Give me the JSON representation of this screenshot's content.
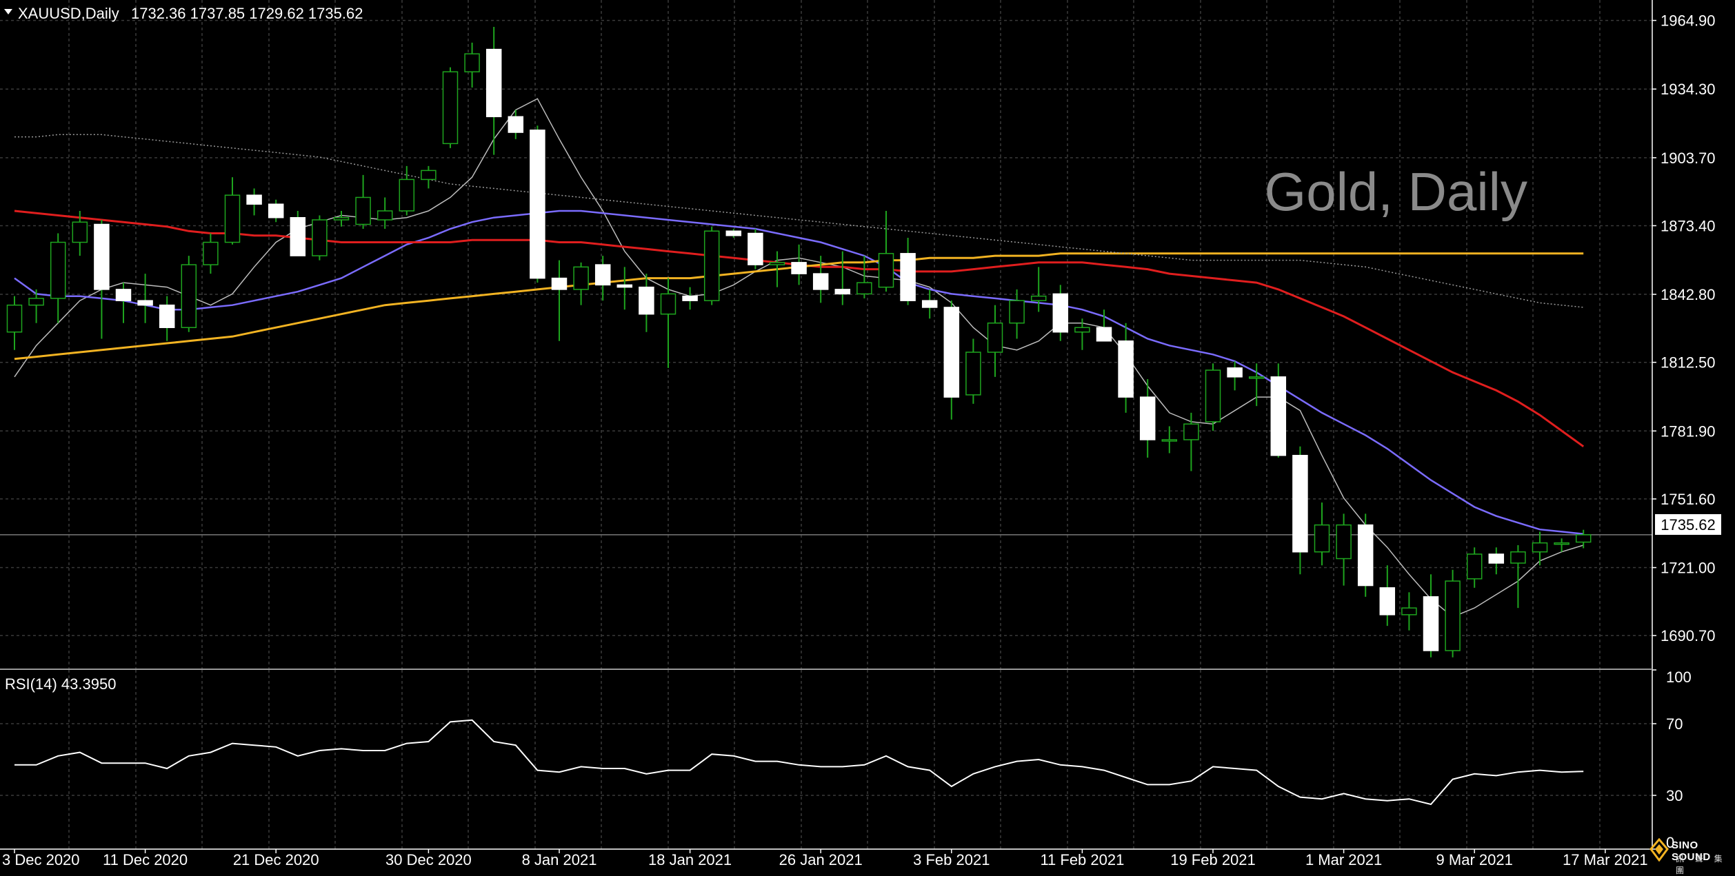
{
  "header": {
    "symbol": "XAUUSD,Daily",
    "ohlc": "1732.36 1737.85 1729.62 1735.62"
  },
  "watermark": "Gold, Daily",
  "current_price_label": "1735.62",
  "rsi_header": "RSI(14) 43.3950",
  "logo": {
    "name": "SINO SOUND",
    "sub": "訊 聲 集 團"
  },
  "colors": {
    "background": "#000000",
    "grid": "#3a3a3a",
    "bull_candle": "#1ea51e",
    "bear_candle": "#ffffff",
    "ma_fast": "#bdbdbd",
    "ma_blue": "#7b6cff",
    "ma_red": "#e01e1e",
    "ma_orange": "#f2b322",
    "ma_slow": "#9c9c9c",
    "rsi": "#ffffff"
  },
  "chart_data": [
    {
      "type": "candlestick",
      "title": "XAUUSD,Daily",
      "x_tick_labels": [
        "3 Dec 2020",
        "11 Dec 2020",
        "21 Dec 2020",
        "30 Dec 2020",
        "8 Jan 2021",
        "18 Jan 2021",
        "26 Jan 2021",
        "3 Feb 2021",
        "11 Feb 2021",
        "19 Feb 2021",
        "1 Mar 2021",
        "9 Mar 2021",
        "17 Mar 2021"
      ],
      "y_ticks": [
        1690.7,
        1721.0,
        1751.6,
        1781.9,
        1812.5,
        1842.8,
        1873.4,
        1903.7,
        1934.3,
        1964.9
      ],
      "y_tick_labels": [
        "1690.70",
        "1721.00",
        "1751.60",
        "1781.90",
        "1812.50",
        "1842.80",
        "1873.40",
        "1903.70",
        "1934.30",
        "1964.90"
      ],
      "ylim": [
        1676,
        1974
      ],
      "current_price": 1735.62,
      "ohlc": [
        [
          1826,
          1842,
          1818,
          1838
        ],
        [
          1838,
          1845,
          1830,
          1841
        ],
        [
          1841,
          1870,
          1830,
          1866
        ],
        [
          1866,
          1880,
          1860,
          1875
        ],
        [
          1874,
          1876,
          1823,
          1845
        ],
        [
          1845,
          1848,
          1830,
          1840
        ],
        [
          1840,
          1852,
          1830,
          1838
        ],
        [
          1838,
          1842,
          1822,
          1828
        ],
        [
          1828,
          1860,
          1826,
          1856
        ],
        [
          1856,
          1870,
          1852,
          1866
        ],
        [
          1866,
          1895,
          1865,
          1887
        ],
        [
          1887,
          1890,
          1878,
          1883
        ],
        [
          1883,
          1885,
          1875,
          1877
        ],
        [
          1877,
          1880,
          1860,
          1860
        ],
        [
          1860,
          1878,
          1858,
          1876
        ],
        [
          1876,
          1880,
          1873,
          1877
        ],
        [
          1874,
          1896,
          1872,
          1886
        ],
        [
          1876,
          1886,
          1872,
          1880
        ],
        [
          1880,
          1900,
          1878,
          1894
        ],
        [
          1894,
          1900,
          1890,
          1898
        ],
        [
          1910,
          1944,
          1908,
          1942
        ],
        [
          1942,
          1955,
          1935,
          1950
        ],
        [
          1952,
          1962,
          1905,
          1922
        ],
        [
          1922,
          1925,
          1912,
          1915
        ],
        [
          1916,
          1918,
          1848,
          1850
        ],
        [
          1850,
          1858,
          1822,
          1845
        ],
        [
          1845,
          1857,
          1838,
          1855
        ],
        [
          1856,
          1860,
          1840,
          1847
        ],
        [
          1847,
          1855,
          1836,
          1846
        ],
        [
          1846,
          1852,
          1826,
          1834
        ],
        [
          1834,
          1850,
          1810,
          1843
        ],
        [
          1842,
          1846,
          1836,
          1840
        ],
        [
          1840,
          1873,
          1838,
          1871
        ],
        [
          1871,
          1872,
          1868,
          1869
        ],
        [
          1870,
          1872,
          1854,
          1856
        ],
        [
          1856,
          1862,
          1846,
          1857
        ],
        [
          1857,
          1865,
          1847,
          1852
        ],
        [
          1852,
          1860,
          1839,
          1845
        ],
        [
          1845,
          1862,
          1838,
          1843
        ],
        [
          1843,
          1860,
          1841,
          1848
        ],
        [
          1846,
          1880,
          1844,
          1861
        ],
        [
          1861,
          1868,
          1838,
          1840
        ],
        [
          1840,
          1845,
          1832,
          1837
        ],
        [
          1837,
          1840,
          1787,
          1797
        ],
        [
          1798,
          1823,
          1794,
          1817
        ],
        [
          1817,
          1838,
          1806,
          1830
        ],
        [
          1830,
          1845,
          1823,
          1840
        ],
        [
          1840,
          1855,
          1835,
          1842
        ],
        [
          1843,
          1847,
          1822,
          1826
        ],
        [
          1826,
          1832,
          1818,
          1828
        ],
        [
          1828,
          1836,
          1823,
          1822
        ],
        [
          1822,
          1830,
          1790,
          1797
        ],
        [
          1797,
          1805,
          1770,
          1778
        ],
        [
          1778,
          1784,
          1772,
          1778
        ],
        [
          1778,
          1790,
          1764,
          1785
        ],
        [
          1786,
          1812,
          1782,
          1809
        ],
        [
          1810,
          1813,
          1800,
          1806
        ],
        [
          1806,
          1812,
          1793,
          1806
        ],
        [
          1806,
          1812,
          1770,
          1771
        ],
        [
          1771,
          1775,
          1718,
          1728
        ],
        [
          1728,
          1750,
          1722,
          1740
        ],
        [
          1725,
          1745,
          1713,
          1740
        ],
        [
          1740,
          1745,
          1708,
          1713
        ],
        [
          1712,
          1722,
          1695,
          1700
        ],
        [
          1700,
          1710,
          1693,
          1703
        ],
        [
          1708,
          1718,
          1681,
          1684
        ],
        [
          1684,
          1720,
          1681,
          1715
        ],
        [
          1716,
          1730,
          1712,
          1727
        ],
        [
          1727,
          1730,
          1718,
          1723
        ],
        [
          1723,
          1731,
          1703,
          1728
        ],
        [
          1728,
          1737,
          1722,
          1732
        ],
        [
          1732,
          1734,
          1728,
          1732
        ],
        [
          1732.36,
          1737.85,
          1729.62,
          1735.62
        ]
      ],
      "moving_averages": [
        {
          "color": "#bdbdbd",
          "values": [
            1806,
            1820,
            1830,
            1840,
            1845,
            1848,
            1847,
            1846,
            1842,
            1838,
            1843,
            1855,
            1866,
            1872,
            1875,
            1878,
            1877,
            1876,
            1877,
            1880,
            1886,
            1895,
            1912,
            1925,
            1930,
            1912,
            1895,
            1880,
            1862,
            1850,
            1845,
            1842,
            1843,
            1847,
            1853,
            1858,
            1859,
            1857,
            1855,
            1851,
            1850,
            1849,
            1846,
            1839,
            1828,
            1820,
            1818,
            1822,
            1830,
            1830,
            1828,
            1816,
            1802,
            1790,
            1786,
            1785,
            1791,
            1797,
            1797,
            1791,
            1771,
            1752,
            1740,
            1730,
            1718,
            1707,
            1699,
            1703,
            1709,
            1715,
            1724,
            1728,
            1731
          ]
        },
        {
          "color": "#7b6cff",
          "values": [
            1850,
            1843,
            1842,
            1842,
            1841,
            1840,
            1838,
            1836,
            1836,
            1837,
            1838,
            1840,
            1842,
            1844,
            1847,
            1850,
            1855,
            1860,
            1865,
            1868,
            1872,
            1875,
            1877,
            1878,
            1879,
            1880,
            1880,
            1879,
            1878,
            1877,
            1876,
            1875,
            1874,
            1873,
            1872,
            1870,
            1868,
            1866,
            1863,
            1860,
            1855,
            1848,
            1845,
            1843,
            1842,
            1841,
            1840,
            1839,
            1838,
            1836,
            1833,
            1828,
            1823,
            1820,
            1818,
            1816,
            1813,
            1808,
            1802,
            1796,
            1790,
            1785,
            1780,
            1774,
            1767,
            1760,
            1754,
            1748,
            1744,
            1741,
            1738,
            1737,
            1736
          ]
        },
        {
          "color": "#e01e1e",
          "values": [
            1880,
            1879,
            1878,
            1877,
            1876,
            1875,
            1874,
            1873,
            1871,
            1870,
            1870,
            1869,
            1869,
            1868,
            1867,
            1866,
            1866,
            1866,
            1866,
            1866,
            1866,
            1867,
            1867,
            1867,
            1867,
            1866,
            1866,
            1865,
            1864,
            1863,
            1862,
            1861,
            1860,
            1859,
            1858,
            1857,
            1856,
            1855,
            1855,
            1854,
            1854,
            1853,
            1853,
            1853,
            1854,
            1855,
            1856,
            1857,
            1857,
            1857,
            1856,
            1855,
            1854,
            1852,
            1851,
            1850,
            1849,
            1848,
            1845,
            1841,
            1837,
            1833,
            1828,
            1823,
            1818,
            1813,
            1808,
            1804,
            1800,
            1795,
            1789,
            1782,
            1775
          ]
        },
        {
          "color": "#f2b322",
          "values": [
            1814,
            1815,
            1816,
            1817,
            1818,
            1819,
            1820,
            1821,
            1822,
            1823,
            1824,
            1826,
            1828,
            1830,
            1832,
            1834,
            1836,
            1838,
            1839,
            1840,
            1841,
            1842,
            1843,
            1844,
            1845,
            1846,
            1847,
            1848,
            1849,
            1850,
            1850,
            1850,
            1851,
            1852,
            1853,
            1854,
            1855,
            1856,
            1857,
            1857,
            1858,
            1858,
            1859,
            1859,
            1859,
            1860,
            1860,
            1860,
            1861,
            1861,
            1861,
            1861,
            1861,
            1861,
            1861,
            1861,
            1861,
            1861,
            1861,
            1861,
            1861,
            1861,
            1861,
            1861,
            1861,
            1861,
            1861,
            1861,
            1861,
            1861,
            1861,
            1861,
            1861
          ]
        },
        {
          "color": "#9c9c9c",
          "values": [
            1913,
            1913,
            1914,
            1914,
            1914,
            1913,
            1912,
            1911,
            1910,
            1909,
            1908,
            1907,
            1906,
            1905,
            1904,
            1902,
            1900,
            1898,
            1896,
            1894,
            1892,
            1891,
            1890,
            1889,
            1888,
            1887,
            1886,
            1885,
            1884,
            1883,
            1882,
            1881,
            1880,
            1879,
            1878,
            1877,
            1876,
            1875,
            1874,
            1873,
            1872,
            1871,
            1870,
            1869,
            1868,
            1867,
            1866,
            1865,
            1864,
            1863,
            1862,
            1861,
            1860,
            1859,
            1858,
            1858,
            1858,
            1858,
            1858,
            1858,
            1857,
            1856,
            1855,
            1853,
            1851,
            1849,
            1847,
            1845,
            1843,
            1841,
            1839,
            1838,
            1837
          ]
        }
      ]
    },
    {
      "type": "line",
      "title": "RSI(14) 43.3950",
      "y_ticks": [
        0,
        30,
        70,
        100
      ],
      "y_tick_labels": [
        "0",
        "30",
        "70",
        "100"
      ],
      "ylim": [
        0,
        100
      ],
      "levels": [
        30,
        70
      ],
      "series": [
        {
          "values": [
            47,
            47,
            52,
            54,
            48,
            48,
            48,
            45,
            52,
            54,
            59,
            58,
            57,
            52,
            55,
            56,
            55,
            55,
            59,
            60,
            71,
            72,
            60,
            58,
            44,
            43,
            46,
            45,
            45,
            42,
            44,
            44,
            53,
            52,
            49,
            49,
            47,
            46,
            46,
            47,
            52,
            46,
            44,
            35,
            42,
            46,
            49,
            50,
            47,
            46,
            44,
            40,
            36,
            36,
            38,
            46,
            45,
            44,
            35,
            29,
            28,
            31,
            28,
            27,
            28,
            25,
            39,
            42,
            41,
            43,
            44,
            43,
            43.395
          ]
        }
      ]
    }
  ]
}
